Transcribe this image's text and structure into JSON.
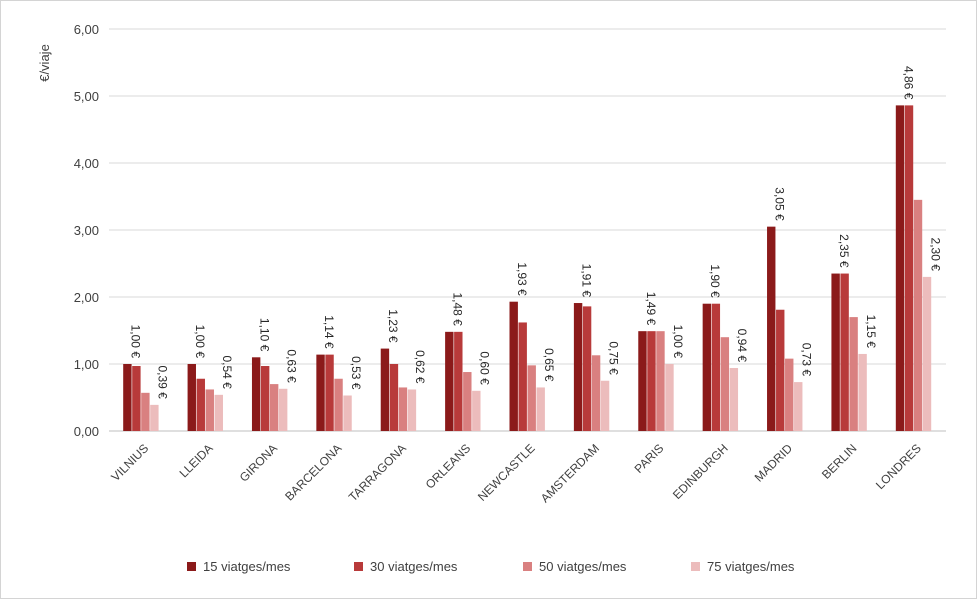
{
  "chart_data": {
    "type": "bar",
    "ylabel": "€/viaje",
    "ylim": [
      0,
      6
    ],
    "yticks": [
      "0,00",
      "1,00",
      "2,00",
      "3,00",
      "4,00",
      "5,00",
      "6,00"
    ],
    "grid": true,
    "legend_position": "bottom",
    "categories": [
      "VILNIUS",
      "LLEIDA",
      "GIRONA",
      "BARCELONA",
      "TARRAGONA",
      "ORLEANS",
      "NEWCASTLE",
      "AMSTERDAM",
      "PARIS",
      "EDINBURGH",
      "MADRID",
      "BERLIN",
      "LONDRES"
    ],
    "series": [
      {
        "name": "15 viatges/mes",
        "color": "#8b1a1a",
        "values": [
          1.0,
          1.0,
          1.1,
          1.14,
          1.23,
          1.48,
          1.93,
          1.91,
          1.49,
          1.9,
          3.05,
          2.35,
          4.86
        ]
      },
      {
        "name": "30 viatges/mes",
        "color": "#b83a3a",
        "values": [
          0.97,
          0.78,
          0.97,
          1.14,
          1.0,
          1.48,
          1.62,
          1.86,
          1.49,
          1.9,
          1.81,
          2.35,
          4.86
        ]
      },
      {
        "name": "50 viatges/mes",
        "color": "#d98080",
        "values": [
          0.57,
          0.62,
          0.7,
          0.78,
          0.65,
          0.88,
          0.98,
          1.13,
          1.49,
          1.4,
          1.08,
          1.7,
          3.45
        ]
      },
      {
        "name": "75 viatges/mes",
        "color": "#ecbcbc",
        "values": [
          0.39,
          0.54,
          0.63,
          0.53,
          0.62,
          0.6,
          0.65,
          0.75,
          1.0,
          0.94,
          0.73,
          1.15,
          2.3
        ]
      }
    ],
    "data_labels": [
      [
        {
          "series": 0,
          "text": "1,00 €"
        },
        {
          "series": 3,
          "text": "0,39 €"
        }
      ],
      [
        {
          "series": 0,
          "text": "1,00 €"
        },
        {
          "series": 3,
          "text": "0,54 €"
        }
      ],
      [
        {
          "series": 0,
          "text": "1,10 €"
        },
        {
          "series": 3,
          "text": "0,63 €"
        }
      ],
      [
        {
          "series": 0,
          "text": "1,14 €"
        },
        {
          "series": 3,
          "text": "0,53 €"
        }
      ],
      [
        {
          "series": 0,
          "text": "1,23 €"
        },
        {
          "series": 3,
          "text": "0,62 €"
        }
      ],
      [
        {
          "series": 0,
          "text": "1,48 €"
        },
        {
          "series": 3,
          "text": "0,60 €"
        }
      ],
      [
        {
          "series": 0,
          "text": "1,93 €"
        },
        {
          "series": 3,
          "text": "0,65 €"
        }
      ],
      [
        {
          "series": 0,
          "text": "1,91 €"
        },
        {
          "series": 3,
          "text": "0,75 €"
        }
      ],
      [
        {
          "series": 0,
          "text": "1,49 €"
        },
        {
          "series": 3,
          "text": "1,00 €"
        }
      ],
      [
        {
          "series": 0,
          "text": "1,90 €"
        },
        {
          "series": 3,
          "text": "0,94 €"
        }
      ],
      [
        {
          "series": 0,
          "text": "3,05 €"
        },
        {
          "series": 3,
          "text": "0,73 €"
        }
      ],
      [
        {
          "series": 0,
          "text": "2,35 €"
        },
        {
          "series": 3,
          "text": "1,15 €"
        }
      ],
      [
        {
          "series": 0,
          "text": "4,86 €"
        },
        {
          "series": 3,
          "text": "2,30 €"
        }
      ]
    ]
  }
}
